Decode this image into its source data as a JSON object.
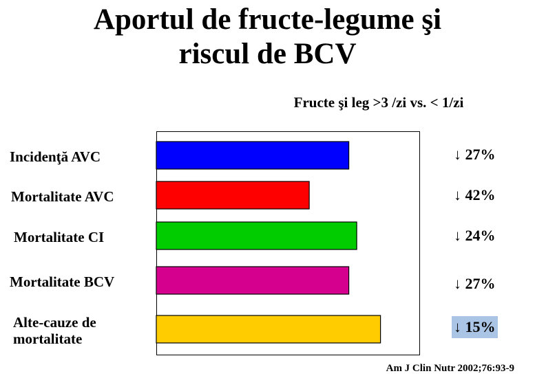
{
  "slide": {
    "title_line1": "Aportul de fructe-legume şi",
    "title_line2": "riscul de BCV",
    "subtitle": "Fructe şi leg >3 /zi vs. < 1/zi",
    "source": "Am J Clin Nutr 2002;76:93-9"
  },
  "chart_data": {
    "type": "bar",
    "orientation": "horizontal",
    "title": "Aportul de fructe-legume şi riscul de BCV",
    "subtitle": "Fructe şi leg >3 /zi vs. < 1/zi",
    "categories": [
      "Incidenţă AVC",
      "Mortalitate AVC",
      "Mortalitate CI",
      "Mortalitate BCV",
      "Alte-cauze de mortalitate"
    ],
    "category_lines": [
      [
        "Incidenţă AVC"
      ],
      [
        "Mortalitate AVC"
      ],
      [
        "Mortalitate CI"
      ],
      [
        "Mortalitate BCV"
      ],
      [
        "Alte-cauze de",
        "mortalitate"
      ]
    ],
    "values": [
      73,
      58,
      76,
      73,
      85
    ],
    "value_labels": [
      "↓ 27%",
      "↓ 42%",
      "↓ 24%",
      "↓ 27%",
      "↓ 15%"
    ],
    "colors": [
      "#0000ff",
      "#ff0000",
      "#00cc00",
      "#d6008f",
      "#ffcc00"
    ],
    "highlighted_label_index": 4,
    "highlight_color": "#a9c4e4",
    "xlim": [
      0,
      100
    ],
    "grid": false,
    "legend": "none"
  }
}
